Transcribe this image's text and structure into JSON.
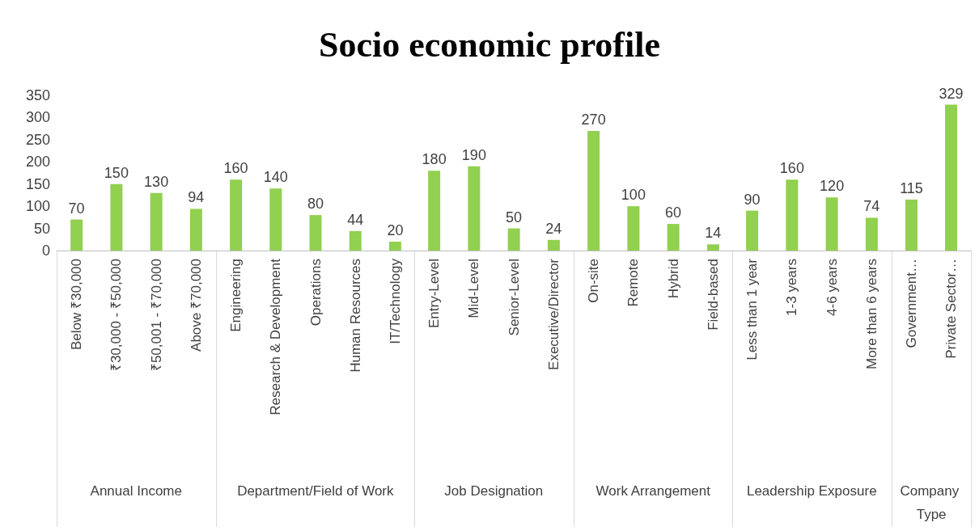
{
  "chart_data": [
    {
      "type": "bar",
      "xlabel": "Annual Income",
      "categories": [
        "Below ₹30,000",
        "₹30,000 - ₹50,000",
        "₹50,001 - ₹70,000",
        "Above ₹70,000"
      ],
      "values": [
        70,
        150,
        130,
        94
      ],
      "color": "#92d050",
      "ylim": [
        0,
        350
      ],
      "yticks": [
        0,
        50,
        100,
        150,
        200,
        250,
        300,
        350
      ],
      "grid": false,
      "data_labels": true
    },
    {
      "type": "bar",
      "xlabel": "Department/Field of Work",
      "categories": [
        "Engineering",
        "Research & Development",
        "Operations",
        "Human Resources",
        "IT/Technology"
      ],
      "values": [
        160,
        140,
        80,
        44,
        20
      ],
      "color": "#92d050",
      "ylim": [
        0,
        350
      ],
      "tick_labels": "x",
      "grid": false,
      "data_labels": true
    },
    {
      "type": "bar",
      "title": "Socio economic profile",
      "xlabel": "Job Designation",
      "categories": [
        "Entry-Level",
        "Mid-Level",
        "Senior-Level",
        "Executive/Director"
      ],
      "values": [
        180,
        190,
        50,
        24
      ],
      "color": "#92d050",
      "ylim": [
        0,
        350
      ],
      "tick_labels": "x",
      "grid": false,
      "data_labels": true
    },
    {
      "type": "bar",
      "xlabel": "Work Arrangement",
      "categories": [
        "On-site",
        "Remote",
        "Hybrid",
        "Field-based"
      ],
      "values": [
        270,
        100,
        60,
        14
      ],
      "color": "#92d050",
      "ylim": [
        0,
        350
      ],
      "tick_labels": "x",
      "grid": false,
      "data_labels": true
    },
    {
      "type": "bar",
      "xlabel": "Leadership Exposure",
      "categories": [
        "Less than 1 year",
        "1-3 years",
        "4-6 years",
        "More than 6 years"
      ],
      "values": [
        90,
        160,
        120,
        74
      ],
      "color": "#92d050",
      "ylim": [
        0,
        350
      ],
      "tick_labels": "x",
      "grid": false,
      "data_labels": true
    },
    {
      "type": "bar",
      "xlabel": "Company Type",
      "categories": [
        "Government…",
        "Private Sector…"
      ],
      "values": [
        115,
        329
      ],
      "color": "#92d050",
      "ylim": [
        0,
        350
      ],
      "tick_labels": "x",
      "grid": false,
      "data_labels": true
    }
  ]
}
